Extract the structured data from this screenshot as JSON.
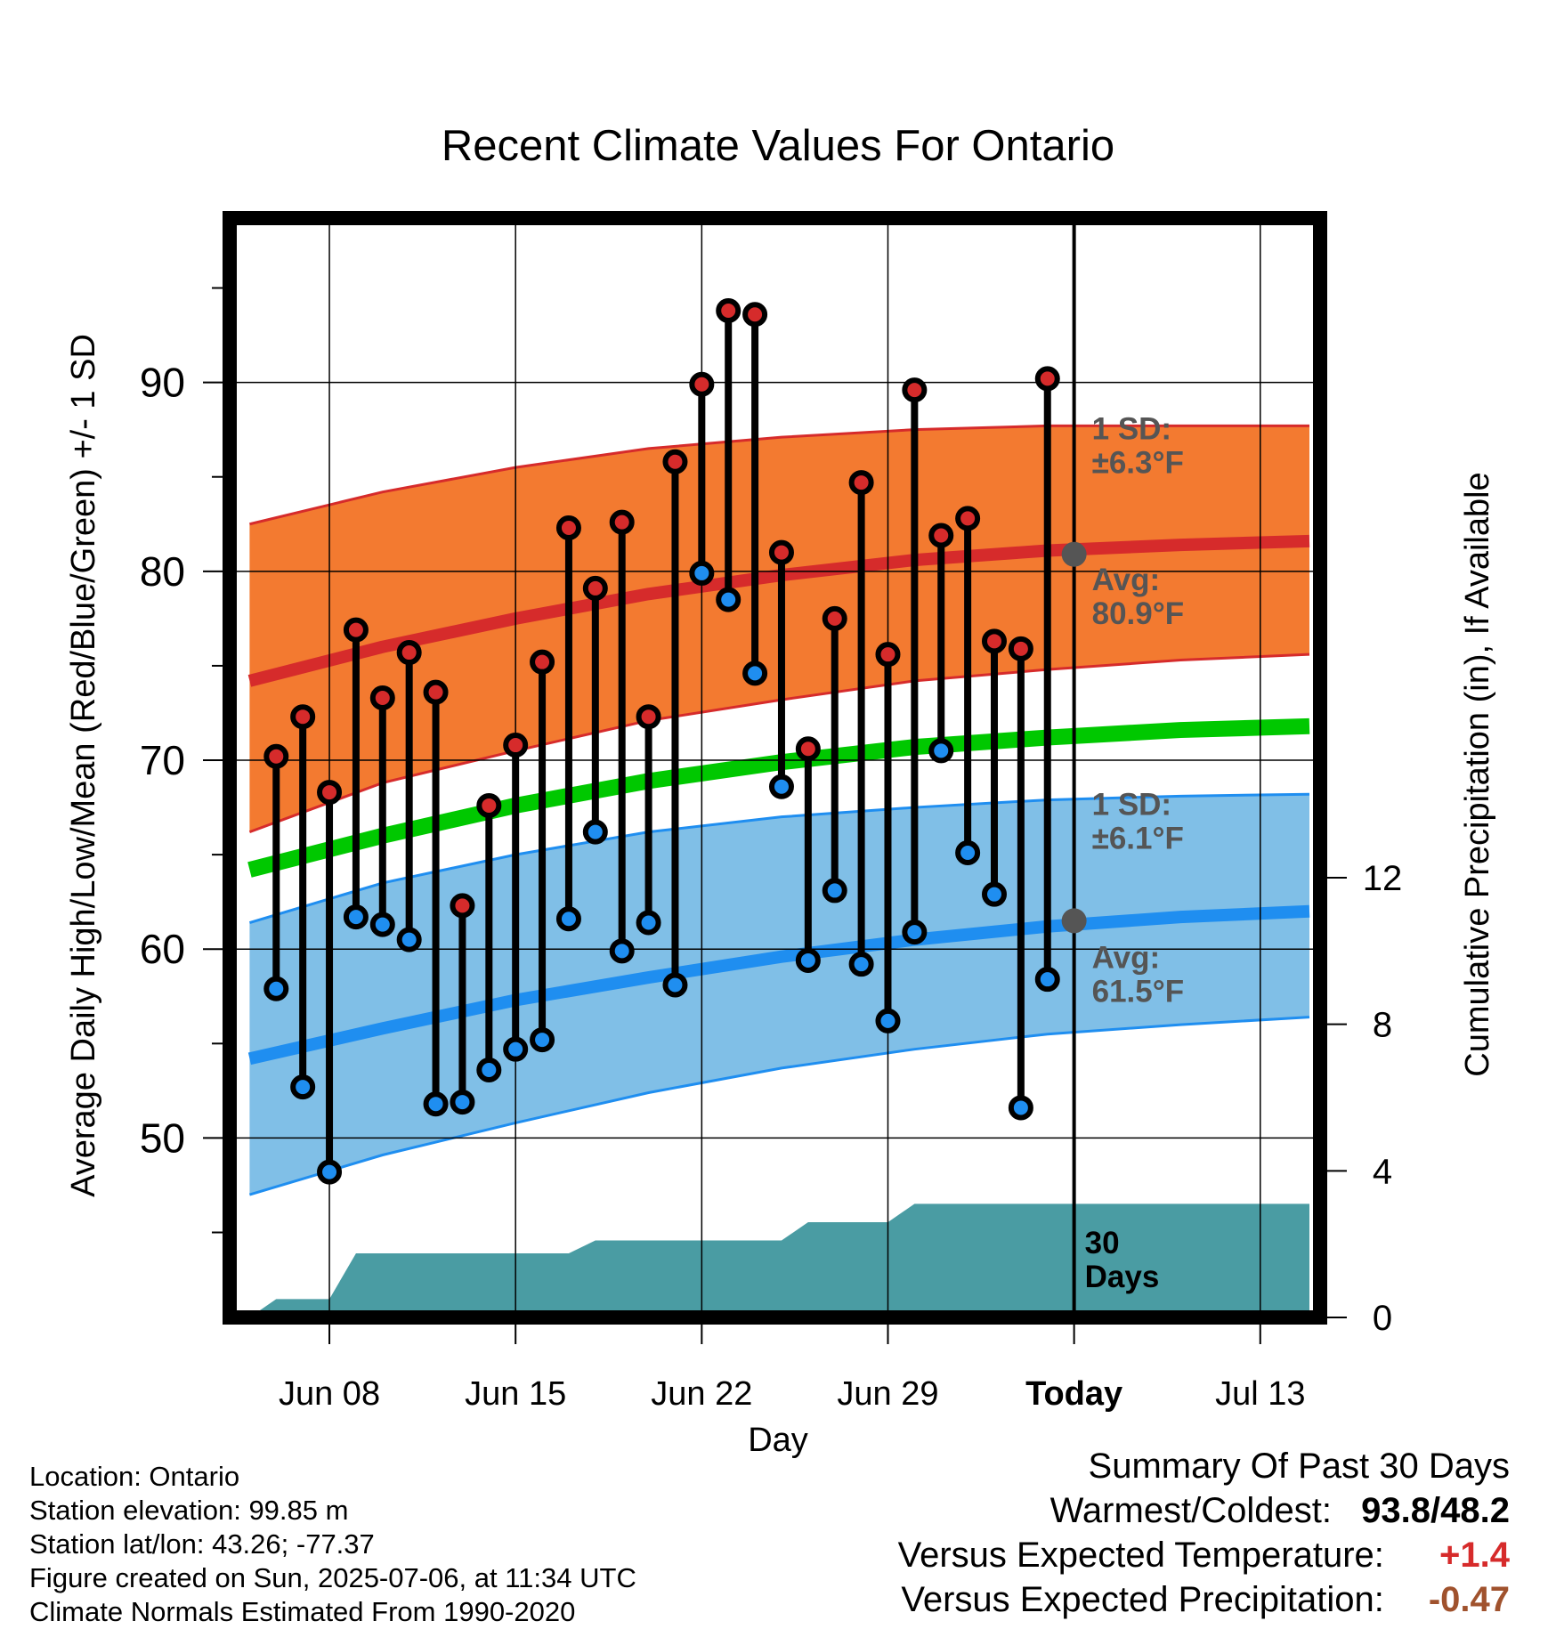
{
  "chart_data": {
    "type": "line",
    "title": "Recent Climate Values For Ontario",
    "xlabel": "Day",
    "ylabel": "Average Daily High/Low/Mean (Red/Blue/Green) +/- 1 SD",
    "y2label": "Cumulative Precipitation (in), If Available",
    "x_tick_labels": [
      "Jun 08",
      "Jun 15",
      "Jun 22",
      "Jun 29",
      "Today",
      "Jul 13"
    ],
    "x_tick_dates": [
      "2025-06-08",
      "2025-06-15",
      "2025-06-22",
      "2025-06-29",
      "2025-07-06",
      "2025-07-13"
    ],
    "xlim": [
      "2025-06-04 18:00",
      "2025-07-15 18:00"
    ],
    "ylim": [
      40.5,
      98.7
    ],
    "y_ticks": [
      50,
      60,
      70,
      80,
      90
    ],
    "y2lim": [
      0,
      30
    ],
    "y2_ticks": [
      0,
      4,
      8,
      12
    ],
    "grid": true,
    "today": "2025-07-06",
    "today_label": "30 Days",
    "observed": {
      "dates": [
        "2025-06-06",
        "2025-06-07",
        "2025-06-08",
        "2025-06-09",
        "2025-06-10",
        "2025-06-11",
        "2025-06-12",
        "2025-06-13",
        "2025-06-14",
        "2025-06-15",
        "2025-06-16",
        "2025-06-17",
        "2025-06-18",
        "2025-06-19",
        "2025-06-20",
        "2025-06-21",
        "2025-06-22",
        "2025-06-23",
        "2025-06-24",
        "2025-06-25",
        "2025-06-26",
        "2025-06-27",
        "2025-06-28",
        "2025-06-29",
        "2025-06-30",
        "2025-07-01",
        "2025-07-02",
        "2025-07-03",
        "2025-07-04",
        "2025-07-05"
      ],
      "high": [
        70.2,
        72.3,
        68.3,
        76.9,
        73.3,
        75.7,
        73.6,
        62.3,
        67.6,
        70.8,
        75.2,
        82.3,
        79.1,
        82.6,
        72.3,
        85.8,
        89.9,
        93.8,
        93.6,
        81.0,
        70.6,
        77.5,
        84.7,
        75.6,
        89.6,
        81.9,
        82.8,
        76.3,
        75.9,
        90.2
      ],
      "low": [
        57.9,
        52.7,
        48.2,
        61.7,
        61.3,
        60.5,
        51.8,
        51.9,
        53.6,
        54.7,
        55.2,
        61.6,
        66.2,
        59.9,
        61.4,
        58.1,
        79.9,
        78.5,
        74.6,
        68.6,
        59.4,
        63.1,
        59.2,
        56.2,
        60.9,
        70.5,
        65.1,
        62.9,
        51.6,
        58.4
      ]
    },
    "normals_x": [
      "2025-06-05",
      "2025-06-10",
      "2025-06-15",
      "2025-06-20",
      "2025-06-25",
      "2025-06-30",
      "2025-07-05",
      "2025-07-10",
      "2025-07-15"
    ],
    "series": [
      {
        "name": "Avg High",
        "values": [
          74.2,
          76.0,
          77.5,
          78.8,
          79.8,
          80.6,
          81.1,
          81.4,
          81.6
        ]
      },
      {
        "name": "Avg High +1 SD",
        "values": [
          82.5,
          84.2,
          85.5,
          86.5,
          87.1,
          87.5,
          87.7,
          87.7,
          87.7
        ]
      },
      {
        "name": "Avg High -1 SD",
        "values": [
          66.2,
          68.8,
          70.5,
          72.1,
          73.2,
          74.2,
          74.8,
          75.3,
          75.6
        ]
      },
      {
        "name": "Avg Mean",
        "values": [
          64.2,
          66.0,
          67.6,
          68.9,
          69.9,
          70.7,
          71.2,
          71.6,
          71.8
        ]
      },
      {
        "name": "Avg Low",
        "values": [
          54.2,
          55.8,
          57.3,
          58.5,
          59.6,
          60.5,
          61.2,
          61.7,
          62.0
        ]
      },
      {
        "name": "Avg Low +1 SD",
        "values": [
          61.4,
          63.5,
          65.0,
          66.2,
          67.0,
          67.5,
          67.9,
          68.1,
          68.2
        ]
      },
      {
        "name": "Avg Low -1 SD",
        "values": [
          47.0,
          49.1,
          50.8,
          52.4,
          53.7,
          54.7,
          55.5,
          56.0,
          56.4
        ]
      }
    ],
    "precipitation": {
      "dates": [
        "2025-06-05",
        "2025-06-06",
        "2025-06-07",
        "2025-06-08",
        "2025-06-09",
        "2025-06-10",
        "2025-06-16",
        "2025-06-17",
        "2025-06-18",
        "2025-06-25",
        "2025-06-26",
        "2025-06-29",
        "2025-06-30",
        "2025-07-06",
        "2025-07-15"
      ],
      "cumulative": [
        0.0,
        0.5,
        0.5,
        0.5,
        1.75,
        1.75,
        1.75,
        1.75,
        2.1,
        2.1,
        2.6,
        2.6,
        3.1,
        3.1,
        3.1
      ]
    },
    "annotations": {
      "high_sd": "1 SD:\n±6.3°F",
      "high_avg": "Avg:\n80.9°F",
      "low_sd": "1 SD:\n±6.1°F",
      "low_avg": "Avg:\n61.5°F",
      "today_high_avg": 80.9,
      "today_low_avg": 61.5
    },
    "colors": {
      "high_band": "#f37a30",
      "high_line": "#d62b2b",
      "mean_line": "#00c800",
      "low_band": "#80bfe7",
      "low_line": "#1f8ef0",
      "precip": "#4a9ca3",
      "high_dot": "#d62b2b",
      "low_dot": "#1f8ef0",
      "annotation_text": "#555555"
    }
  },
  "info": {
    "location": "Location: Ontario",
    "elevation": "Station elevation: 99.85 m",
    "latlon": "Station lat/lon: 43.26; -77.37",
    "created": "Figure created on Sun, 2025-07-06, at 11:34 UTC",
    "normals": "Climate Normals Estimated From 1990-2020"
  },
  "summary": {
    "title": "Summary Of Past 30 Days",
    "warm_cold_label": "Warmest/Coldest:",
    "warmest": "93.8",
    "coldest": "48.2",
    "temp_label": "Versus Expected Temperature:",
    "temp_value": "+1.4",
    "temp_color": "#d62b2b",
    "precip_label": "Versus Expected Precipitation:",
    "precip_value": "-0.47",
    "precip_color": "#a0522d"
  }
}
